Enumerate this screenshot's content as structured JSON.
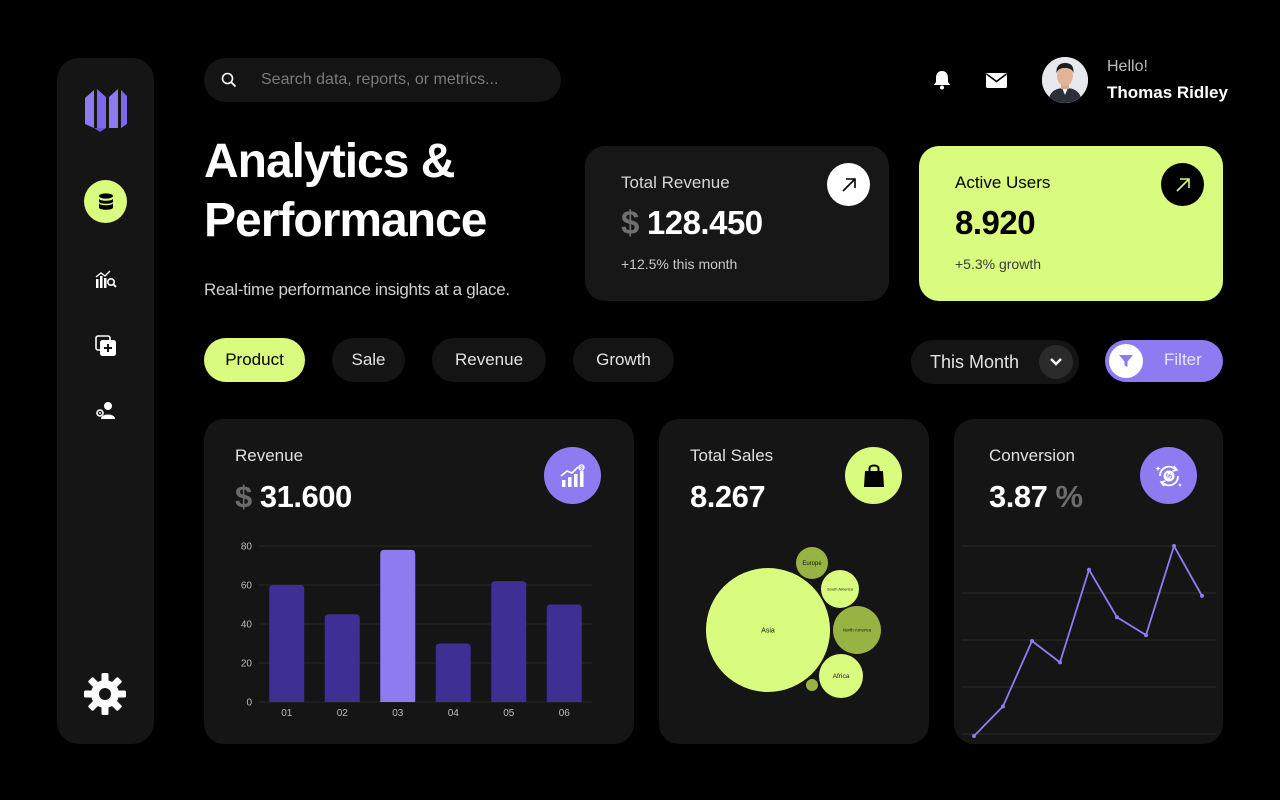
{
  "search": {
    "placeholder": "Search data, reports, or metrics..."
  },
  "user": {
    "greeting": "Hello!",
    "name": "Thomas Ridley"
  },
  "header": {
    "title": "Analytics & Performance",
    "subtitle": "Real-time performance insights at a glace."
  },
  "cards": {
    "revenue": {
      "label": "Total Revenue",
      "currency": "$",
      "value": "128.450",
      "note": "+12.5% this month"
    },
    "users": {
      "label": "Active Users",
      "value": "8.920",
      "note": "+5.3% growth"
    }
  },
  "tabs": [
    {
      "label": "Product",
      "active": true
    },
    {
      "label": "Sale",
      "active": false
    },
    {
      "label": "Revenue",
      "active": false
    },
    {
      "label": "Growth",
      "active": false
    }
  ],
  "period": {
    "selected": "This Month"
  },
  "filter": {
    "label": "Filter"
  },
  "colors": {
    "accent_lime": "#d9fb7e",
    "accent_purple": "#8f7bf1",
    "bar_dark": "#3d2f94"
  },
  "icons": {
    "sidebar": [
      "database-icon",
      "chart-search-icon",
      "add-square-icon",
      "user-settings-icon",
      "gear-icon"
    ],
    "top": [
      "bell-icon",
      "mail-icon"
    ]
  },
  "panels": {
    "revenue": {
      "title": "Revenue",
      "currency": "$",
      "value": "31.600"
    },
    "sales": {
      "title": "Total Sales",
      "value": "8.267"
    },
    "conversion": {
      "title": "Conversion",
      "value": "3.87",
      "unit": "%"
    }
  },
  "chart_data": [
    {
      "type": "bar",
      "categories": [
        "01",
        "02",
        "03",
        "04",
        "05",
        "06"
      ],
      "values": [
        60,
        45,
        78,
        30,
        62,
        50
      ],
      "highlight_index": 2,
      "y_ticks": [
        0,
        20,
        40,
        60,
        80
      ],
      "ylim": [
        0,
        80
      ],
      "grid": true
    },
    {
      "type": "bubble",
      "labels": [
        "Asia",
        "Europe",
        "South America",
        "North America",
        "Africa",
        ""
      ],
      "values": [
        100,
        6,
        9,
        15,
        11,
        1
      ]
    },
    {
      "type": "line",
      "values": [
        0,
        2.5,
        8,
        6.2,
        14,
        10,
        8.5,
        16,
        11.8
      ],
      "ylim": [
        0,
        16
      ],
      "grid": true
    }
  ]
}
